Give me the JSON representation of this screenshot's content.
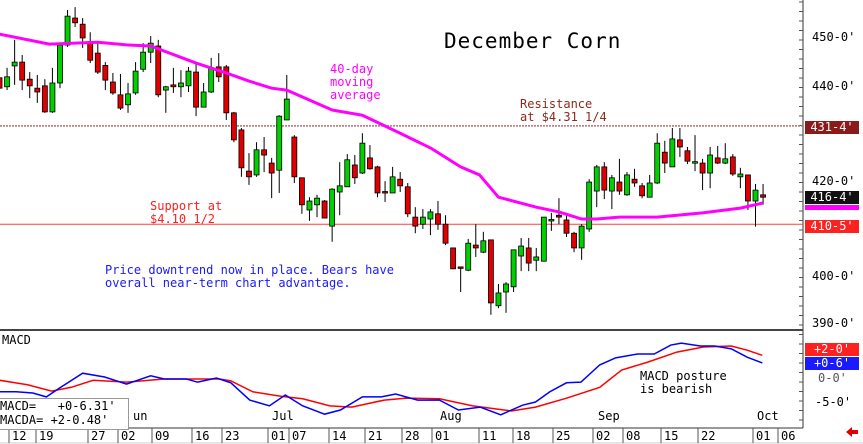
{
  "chart_data": {
    "type": "candlestick",
    "title": "December Corn",
    "price_axis": {
      "ticks": [
        "450-0'",
        "440-0'",
        "420-0'",
        "400-0'",
        "390-0'"
      ],
      "tick_values": [
        450,
        440,
        420,
        400,
        390
      ],
      "range": [
        386.5,
        457.8
      ]
    },
    "price_tags": [
      {
        "label": "431-4'",
        "value": 431.5,
        "color": "#8b1a1a"
      },
      {
        "label": "416-4'",
        "value": 416.5,
        "color": "#111111"
      },
      {
        "label": "410-5'",
        "value": 410.6,
        "color": "#ff2020"
      }
    ],
    "ma_tag_color": "#ff00ff",
    "x_dates": [
      "12",
      "19",
      "27",
      "02",
      "09",
      "16",
      "23",
      "01",
      "07",
      "14",
      "21",
      "28",
      "01",
      "11",
      "18",
      "25",
      "02",
      "08",
      "15",
      "22",
      "01",
      "06"
    ],
    "x_months": [
      "un",
      "Jul",
      "Aug",
      "Sep",
      "Oct"
    ],
    "ohlc": [
      [
        441.4,
        443,
        438,
        439.2
      ],
      [
        439.5,
        443.5,
        438.8,
        441.6
      ],
      [
        443.9,
        449.4,
        439.9,
        444.7
      ],
      [
        444.7,
        446.2,
        438.8,
        440.9
      ],
      [
        441.1,
        442.6,
        437.1,
        439.7
      ],
      [
        439.2,
        442,
        436.1,
        438.4
      ],
      [
        439.7,
        441.1,
        434.0,
        434.2
      ],
      [
        434.2,
        443.5,
        434.0,
        440.3
      ],
      [
        440.3,
        448.7,
        439.2,
        448.3
      ],
      [
        448.3,
        455.7,
        447.9,
        454.4
      ],
      [
        454,
        456.3,
        452.1,
        453
      ],
      [
        452.7,
        454,
        447.7,
        449.8
      ],
      [
        449,
        451,
        444.5,
        445.1
      ],
      [
        446.6,
        448.7,
        442.2,
        442.6
      ],
      [
        444,
        444.7,
        438.8,
        440.9
      ],
      [
        440.5,
        442.4,
        437.8,
        438.2
      ],
      [
        437.8,
        442.2,
        434.6,
        435
      ],
      [
        435.7,
        440.3,
        434,
        438
      ],
      [
        438.2,
        444.7,
        437.8,
        442.8
      ],
      [
        443.2,
        448.7,
        442.6,
        446.8
      ],
      [
        446.8,
        450.2,
        444.5,
        448.7
      ],
      [
        448.1,
        449.4,
        437.3,
        437.8
      ],
      [
        438.8,
        439.7,
        434,
        439.5
      ],
      [
        439.9,
        443.5,
        438.2,
        439.5
      ],
      [
        439.5,
        443,
        437.3,
        440.3
      ],
      [
        439.7,
        443.7,
        438.4,
        442.8
      ],
      [
        442.6,
        444.5,
        433.3,
        435.2
      ],
      [
        435.2,
        440.3,
        435.2,
        438.4
      ],
      [
        438.4,
        445.6,
        438.2,
        443.5
      ],
      [
        443.7,
        446.6,
        440.5,
        441.6
      ],
      [
        443.7,
        444.1,
        432.5,
        434
      ],
      [
        434,
        434.2,
        427.8,
        428.3
      ],
      [
        430.4,
        430.8,
        420.5,
        422.4
      ],
      [
        421.7,
        425.5,
        418.8,
        420.5
      ],
      [
        420.9,
        427.8,
        420.5,
        426.2
      ],
      [
        426.2,
        428.9,
        421.5,
        425.1
      ],
      [
        423.4,
        424.5,
        416,
        421.3
      ],
      [
        421.9,
        433.5,
        417.1,
        433.3
      ],
      [
        432.5,
        442,
        432.5,
        436.9
      ],
      [
        428.9,
        429.3,
        419.2,
        420.5
      ],
      [
        420.3,
        420.3,
        412.7,
        414.6
      ],
      [
        413.5,
        416.2,
        411.2,
        415.4
      ],
      [
        414.6,
        416.7,
        412,
        416
      ],
      [
        415.4,
        415.6,
        411.8,
        411.8
      ],
      [
        410.1,
        418.1,
        406.8,
        417.9
      ],
      [
        417.3,
        423.6,
        412.4,
        418.6
      ],
      [
        418.4,
        425.3,
        418.4,
        424.1
      ],
      [
        423,
        425.1,
        419,
        420.3
      ],
      [
        421.3,
        429.7,
        421.1,
        427.6
      ],
      [
        424.5,
        427.2,
        422,
        422.2
      ],
      [
        422.6,
        422.8,
        416.2,
        417.1
      ],
      [
        417.4,
        419.6,
        415.2,
        417.2
      ],
      [
        417.1,
        422.6,
        417.1,
        420.5
      ],
      [
        420,
        421.5,
        417.3,
        418.6
      ],
      [
        418.4,
        419.2,
        412,
        412.7
      ],
      [
        412,
        414.1,
        408.6,
        410.1
      ],
      [
        410.5,
        413.7,
        409.5,
        412
      ],
      [
        411.6,
        413.7,
        408.2,
        413.1
      ],
      [
        412.7,
        415.4,
        409.3,
        410.5
      ],
      [
        410.5,
        412.4,
        406.1,
        406.5
      ],
      [
        405.5,
        405.6,
        401,
        401.1
      ],
      [
        401.5,
        401.5,
        396.2,
        401.4
      ],
      [
        400.8,
        407.4,
        400.6,
        406.5
      ],
      [
        406.1,
        410.5,
        403.6,
        405.5
      ],
      [
        404.6,
        408.9,
        404.4,
        407
      ],
      [
        407.2,
        407.2,
        391.4,
        393.9
      ],
      [
        393.3,
        397.9,
        392.8,
        396
      ],
      [
        396.2,
        398.3,
        391.8,
        397.9
      ],
      [
        397.3,
        405.1,
        396.2,
        405.1
      ],
      [
        403.8,
        407.6,
        400.6,
        405.9
      ],
      [
        405.5,
        407.6,
        400.6,
        402.3
      ],
      [
        402.9,
        405.5,
        400.6,
        403.6
      ],
      [
        402.7,
        412,
        402.7,
        412
      ],
      [
        411.3,
        412.9,
        409.1,
        411.5
      ],
      [
        412.4,
        416,
        410.5,
        412
      ],
      [
        411.4,
        412.7,
        407.8,
        408.6
      ],
      [
        408.6,
        408.9,
        404.6,
        405.5
      ],
      [
        405.5,
        410.5,
        403,
        410.1
      ],
      [
        409.5,
        420,
        408.9,
        419.4
      ],
      [
        417.5,
        423,
        414.1,
        422.6
      ],
      [
        422.6,
        423.6,
        415.8,
        417.7
      ],
      [
        417.5,
        420.9,
        413.7,
        420.3
      ],
      [
        419.4,
        424.3,
        416.7,
        417.5
      ],
      [
        416.7,
        421.5,
        416.5,
        420.9
      ],
      [
        420,
        422.2,
        418.4,
        419.2
      ],
      [
        418.6,
        419.2,
        416,
        416.5
      ],
      [
        416.2,
        420.9,
        416.2,
        419.2
      ],
      [
        419.2,
        429.7,
        419,
        427.6
      ],
      [
        425.7,
        428.1,
        421.3,
        423.4
      ],
      [
        422.6,
        430.8,
        422.6,
        428.5
      ],
      [
        428.3,
        430.8,
        424.7,
        426.8
      ],
      [
        426,
        426.8,
        423.2,
        423.8
      ],
      [
        423.5,
        429.3,
        421.7,
        423.7
      ],
      [
        423.4,
        424.3,
        417.7,
        421.3
      ],
      [
        421.3,
        426.8,
        418.1,
        425.1
      ],
      [
        424.5,
        427,
        423.2,
        423.4
      ],
      [
        423.4,
        427.6,
        423.2,
        424.3
      ],
      [
        424.7,
        425.3,
        420.7,
        421.1
      ],
      [
        420.5,
        422.4,
        418.1,
        421.1
      ],
      [
        420.9,
        420.9,
        413.5,
        415.4
      ],
      [
        415.4,
        419,
        410,
        417.7
      ],
      [
        416.7,
        419,
        414.6,
        416.2
      ]
    ],
    "moving_average_40": [
      [
        0,
        450.6
      ],
      [
        6.6,
        448.5
      ],
      [
        13,
        448.9
      ],
      [
        17,
        448.3
      ],
      [
        20,
        448.1
      ],
      [
        26,
        444.5
      ],
      [
        30,
        442.4
      ],
      [
        33,
        440.7
      ],
      [
        36,
        439.2
      ],
      [
        38,
        438.8
      ],
      [
        44,
        434.6
      ],
      [
        48,
        433.5
      ],
      [
        53,
        429.7
      ],
      [
        57,
        426.6
      ],
      [
        61,
        422.6
      ],
      [
        63.5,
        420.9
      ],
      [
        66,
        416.2
      ],
      [
        71,
        414.1
      ],
      [
        74,
        413.1
      ],
      [
        77,
        411.6
      ],
      [
        79,
        411.6
      ],
      [
        82,
        412.0
      ],
      [
        87,
        412.0
      ],
      [
        93,
        412.9
      ],
      [
        98,
        413.9
      ],
      [
        101,
        415.0
      ]
    ],
    "support": 410.5,
    "resistance": 431.25,
    "macd_axis": {
      "ticks": [
        "-5-0'"
      ],
      "tick_values": [
        -5
      ]
    },
    "macd_tags": [
      {
        "label": "+2-0'",
        "value": 2.0,
        "color": "#ff2020"
      },
      {
        "label": "+0-6'",
        "value": 0.75,
        "color": "#1a1aff"
      }
    ],
    "macd_zero_label": "0-0'",
    "macd": [
      [
        0,
        -3.4
      ],
      [
        2.2,
        -3.4
      ],
      [
        4.4,
        -3.6
      ],
      [
        6.2,
        -4.2
      ],
      [
        8.1,
        -2.7
      ],
      [
        11,
        -0.5
      ],
      [
        13.9,
        -1.1
      ],
      [
        16.8,
        -2.2
      ],
      [
        20,
        -0.9
      ],
      [
        21.8,
        -1.4
      ],
      [
        24.7,
        -1.4
      ],
      [
        26.2,
        -1.9
      ],
      [
        28.7,
        -1.25
      ],
      [
        30.6,
        -2.0
      ],
      [
        33.1,
        -4.7
      ],
      [
        35.7,
        -5.6
      ],
      [
        37.8,
        -3.9
      ],
      [
        40.1,
        -5.6
      ],
      [
        43,
        -6.9
      ],
      [
        45.1,
        -6.25
      ],
      [
        48,
        -4.2
      ],
      [
        50.5,
        -4.2
      ],
      [
        52.4,
        -3.75
      ],
      [
        55.3,
        -4.7
      ],
      [
        58.2,
        -4.7
      ],
      [
        60.7,
        -6.25
      ],
      [
        63.6,
        -5.8
      ],
      [
        66.3,
        -7.0
      ],
      [
        69.2,
        -5.5
      ],
      [
        70.9,
        -5.0
      ],
      [
        72.8,
        -3.4
      ],
      [
        75,
        -2.0
      ],
      [
        76.9,
        -1.9
      ],
      [
        79.4,
        0.8
      ],
      [
        81.5,
        1.9
      ],
      [
        84.4,
        2.5
      ],
      [
        86.6,
        2.5
      ],
      [
        88.8,
        3.9
      ],
      [
        90.2,
        4.2
      ],
      [
        92.7,
        3.75
      ],
      [
        94.6,
        3.75
      ],
      [
        96.8,
        3.3
      ],
      [
        98.9,
        2.0
      ],
      [
        100.9,
        1.1
      ]
    ],
    "macda": [
      [
        0,
        -1.6
      ],
      [
        3.7,
        -2.3
      ],
      [
        6.9,
        -3.3
      ],
      [
        9.5,
        -2.7
      ],
      [
        12.4,
        -1.6
      ],
      [
        16.8,
        -1.9
      ],
      [
        21.8,
        -1.4
      ],
      [
        29.1,
        -1.4
      ],
      [
        30.6,
        -1.7
      ],
      [
        33.5,
        -3.4
      ],
      [
        37.2,
        -4.1
      ],
      [
        40.1,
        -4.5
      ],
      [
        43.7,
        -5.6
      ],
      [
        46.6,
        -5.8
      ],
      [
        50.9,
        -4.7
      ],
      [
        53.8,
        -4.4
      ],
      [
        58.2,
        -4.5
      ],
      [
        62.6,
        -5.6
      ],
      [
        67.7,
        -6.4
      ],
      [
        70.9,
        -5.8
      ],
      [
        75,
        -4.4
      ],
      [
        79.4,
        -2.7
      ],
      [
        82.3,
        0
      ],
      [
        85.8,
        1.25
      ],
      [
        89.6,
        2.8
      ],
      [
        93.1,
        3.6
      ],
      [
        96.8,
        3.75
      ],
      [
        98.9,
        3.1
      ],
      [
        100.9,
        2.3
      ]
    ],
    "colors": {
      "up": "#00d000",
      "down": "#e00000",
      "ma": "#ff00ff",
      "macd": "#0000ff",
      "macda": "#ff0000",
      "support": "#ff4040",
      "resistance": "#b07070"
    }
  },
  "annotations": {
    "ma_label": "40-day\nmoving\naverage",
    "resistance_label": "Resistance\nat $4.31 1/4",
    "support_label": "Support at\n$4.10 1/2",
    "comment": "Price downtrend now in place. Bears have\noverall near-term chart advantage.",
    "macd_panel_label": "MACD",
    "macd_comment": "MACD posture\nis bearish"
  },
  "legend": {
    "macd": "MACD=   +0-6.31'",
    "macda": "MACDA= +2-0.48'"
  }
}
